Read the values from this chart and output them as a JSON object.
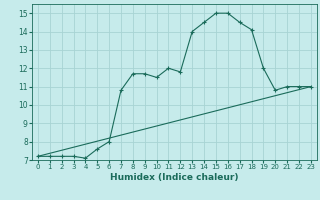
{
  "xlabel": "Humidex (Indice chaleur)",
  "ylabel": "",
  "xlim": [
    -0.5,
    23.5
  ],
  "ylim": [
    7,
    15.5
  ],
  "yticks": [
    7,
    8,
    9,
    10,
    11,
    12,
    13,
    14,
    15
  ],
  "xticks": [
    0,
    1,
    2,
    3,
    4,
    5,
    6,
    7,
    8,
    9,
    10,
    11,
    12,
    13,
    14,
    15,
    16,
    17,
    18,
    19,
    20,
    21,
    22,
    23
  ],
  "background_color": "#c6ebeb",
  "grid_color": "#a8d4d4",
  "line_color": "#1a6b5a",
  "line1_x": [
    0,
    1,
    2,
    3,
    4,
    5,
    6,
    7,
    8,
    9,
    10,
    11,
    12,
    13,
    14,
    15,
    16,
    17,
    18,
    19,
    20,
    21,
    22,
    23
  ],
  "line1_y": [
    7.2,
    7.2,
    7.2,
    7.2,
    7.1,
    7.6,
    8.0,
    10.8,
    11.7,
    11.7,
    11.5,
    12.0,
    11.8,
    14.0,
    14.5,
    15.0,
    15.0,
    14.5,
    14.1,
    12.0,
    10.8,
    11.0,
    11.0,
    11.0
  ],
  "line2_x": [
    0,
    23
  ],
  "line2_y": [
    7.2,
    11.0
  ]
}
